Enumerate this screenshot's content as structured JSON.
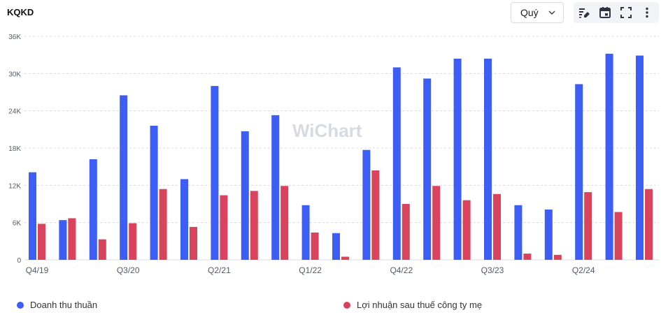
{
  "header": {
    "title": "KQKD",
    "period_value": "Quý"
  },
  "toolbar": {
    "icons": [
      "chart-settings-icon",
      "calendar-icon",
      "fullscreen-icon",
      "more-vertical-icon"
    ]
  },
  "watermark": "WiChart",
  "colors": {
    "revenue": "#3d5ef5",
    "profit": "#d9445c",
    "grid": "#d7dbe2",
    "axis_text": "#555a66"
  },
  "chart_data": {
    "type": "bar",
    "title": "",
    "xlabel": "",
    "ylabel": "",
    "ylim": [
      0,
      36000
    ],
    "y_ticks": [
      0,
      6000,
      12000,
      18000,
      24000,
      30000,
      36000
    ],
    "y_tick_labels": [
      "0",
      "6K",
      "12K",
      "18K",
      "24K",
      "30K",
      "36K"
    ],
    "categories": [
      "Q4/19",
      "Q1/20",
      "Q2/20",
      "Q3/20",
      "Q4/20",
      "Q1/21",
      "Q2/21",
      "Q3/21",
      "Q4/21",
      "Q1/22",
      "Q2/22",
      "Q3/22",
      "Q4/22",
      "Q1/23",
      "Q2/23",
      "Q3/23",
      "Q4/23",
      "Q1/24",
      "Q2/24",
      "Q3/24",
      "Q4/24"
    ],
    "x_tick_labels": [
      "Q4/19",
      "",
      "",
      "Q3/20",
      "",
      "",
      "Q2/21",
      "",
      "",
      "Q1/22",
      "",
      "",
      "Q4/22",
      "",
      "",
      "Q3/23",
      "",
      "",
      "Q2/24",
      "",
      ""
    ],
    "series": [
      {
        "name": "Doanh thu thuần",
        "values": [
          14100,
          6400,
          16200,
          26500,
          21600,
          13000,
          28000,
          20700,
          23300,
          8800,
          4300,
          17700,
          31000,
          29200,
          32400,
          32400,
          8800,
          8100,
          28300,
          33200,
          32900
        ]
      },
      {
        "name": "Lợi nhuận sau thuế công ty mẹ",
        "values": [
          5800,
          6700,
          3300,
          5900,
          11400,
          5300,
          10400,
          11100,
          11900,
          4400,
          500,
          14400,
          9000,
          11900,
          9600,
          10600,
          1000,
          800,
          10900,
          7700,
          11400
        ]
      }
    ],
    "grid": true,
    "legend_position": "bottom"
  }
}
